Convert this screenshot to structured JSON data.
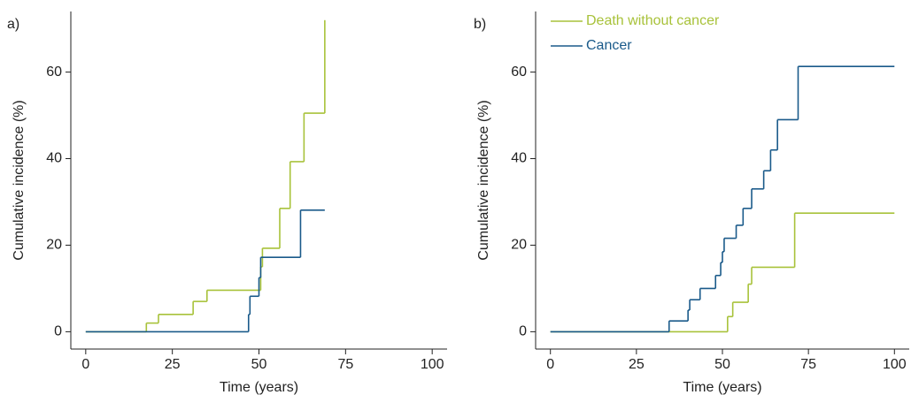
{
  "chart_data": [
    {
      "type": "line",
      "step": true,
      "label": "a)",
      "x_label": "Time (years)",
      "y_label": "Cumulative incidence (%)",
      "xlim": [
        -4.3,
        104.3
      ],
      "ylim": [
        -4,
        74
      ],
      "xticks": [
        0,
        25,
        50,
        75,
        100
      ],
      "yticks": [
        0,
        20,
        40,
        60
      ],
      "series": [
        {
          "name": "Death without cancer",
          "color": "#a8c23a",
          "x": [
            0,
            17.5,
            21,
            31,
            35,
            50.5,
            51,
            56,
            59,
            63,
            69
          ],
          "values": [
            0,
            2,
            4,
            7,
            9.6,
            15,
            19.3,
            28.5,
            39.3,
            50.5,
            72
          ]
        },
        {
          "name": "Cancer",
          "color": "#1a5a8a",
          "x": [
            0,
            47,
            47.4,
            50,
            50.5,
            62,
            69
          ],
          "values": [
            0,
            4,
            8.2,
            12.5,
            17.2,
            28.1,
            28.1
          ]
        }
      ]
    },
    {
      "type": "line",
      "step": true,
      "label": "b)",
      "x_label": "Time (years)",
      "y_label": "Cumulative incidence (%)",
      "xlim": [
        -4.3,
        104.3
      ],
      "ylim": [
        -4,
        74
      ],
      "xticks": [
        0,
        25,
        50,
        75,
        100
      ],
      "yticks": [
        0,
        20,
        40,
        60
      ],
      "legend": "upper left",
      "series": [
        {
          "name": "Death without cancer",
          "color": "#a8c23a",
          "x": [
            0,
            51.5,
            53,
            57.5,
            58.5,
            71,
            100
          ],
          "values": [
            0,
            3.5,
            6.8,
            11,
            14.9,
            27.4,
            27.4
          ]
        },
        {
          "name": "Cancer",
          "color": "#1a5a8a",
          "x": [
            0,
            34.5,
            40,
            40.5,
            43.5,
            48,
            49.5,
            50,
            50.5,
            54,
            56,
            58.5,
            62,
            64,
            66,
            72,
            100
          ],
          "values": [
            0,
            2.5,
            5,
            7.4,
            10,
            13,
            16,
            18.5,
            21.6,
            24.6,
            28.5,
            33,
            37.2,
            42,
            49,
            61.3,
            61.3
          ]
        }
      ]
    }
  ]
}
